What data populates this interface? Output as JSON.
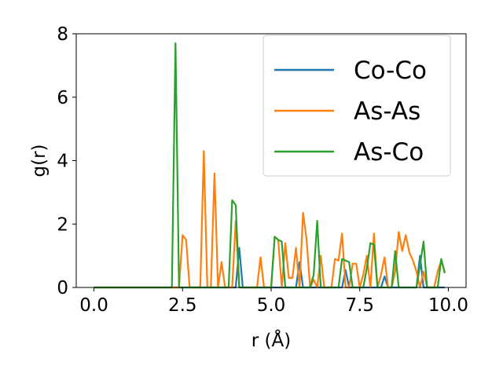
{
  "chart_data": {
    "type": "line",
    "xlabel": "r (Å)",
    "ylabel": "g(r)",
    "xlim": [
      -0.5,
      10.5
    ],
    "ylim": [
      0,
      8
    ],
    "xticks": [
      0.0,
      2.5,
      5.0,
      7.5,
      10.0
    ],
    "xtick_labels": [
      "0.0",
      "2.5",
      "5.0",
      "7.5",
      "10.0"
    ],
    "yticks": [
      0,
      2,
      4,
      6,
      8
    ],
    "ytick_labels": [
      "0",
      "2",
      "4",
      "6",
      "8"
    ],
    "grid": false,
    "legend_position": "top-right",
    "series": [
      {
        "name": "Co-Co",
        "color": "#1f77b4",
        "x": [
          0.0,
          4.0,
          4.1,
          4.2,
          5.7,
          5.8,
          5.9,
          7.0,
          7.1,
          7.2,
          8.1,
          8.2,
          8.3,
          9.1,
          9.2,
          9.3,
          9.9
        ],
        "y": [
          0,
          0,
          1.25,
          0,
          0,
          0.8,
          0,
          0,
          0.55,
          0,
          0,
          0.35,
          0,
          0,
          1.0,
          0,
          0
        ]
      },
      {
        "name": "As-As",
        "color": "#ff7f0e",
        "x": [
          0.0,
          2.4,
          2.5,
          2.6,
          2.7,
          3.0,
          3.1,
          3.2,
          3.3,
          3.4,
          3.5,
          3.6,
          3.7,
          3.8,
          3.9,
          4.0,
          4.1,
          4.2,
          4.6,
          4.7,
          4.8,
          5.0,
          5.1,
          5.2,
          5.3,
          5.4,
          5.5,
          5.6,
          5.7,
          5.8,
          5.9,
          6.0,
          6.1,
          6.2,
          6.3,
          6.4,
          6.5,
          6.6,
          6.7,
          6.8,
          6.9,
          7.0,
          7.1,
          7.2,
          7.3,
          7.4,
          7.5,
          7.6,
          7.7,
          7.8,
          7.9,
          8.0,
          8.1,
          8.2,
          8.3,
          8.4,
          8.5,
          8.6,
          8.7,
          8.8,
          8.9,
          9.0,
          9.1,
          9.2,
          9.3,
          9.4,
          9.5,
          9.6,
          9.7,
          9.8,
          9.9
        ],
        "y": [
          0,
          0,
          1.65,
          1.5,
          0,
          0,
          4.3,
          0,
          0,
          3.6,
          0,
          0.8,
          0,
          0,
          0,
          2.1,
          0,
          0,
          0,
          0.95,
          0,
          0,
          1.6,
          1.5,
          0,
          1.4,
          0.3,
          0.3,
          1.25,
          0,
          2.35,
          1.5,
          0,
          0.25,
          0,
          1.0,
          0,
          0,
          0,
          0.9,
          0.85,
          1.7,
          0,
          0,
          0.75,
          0.75,
          0,
          0.4,
          1.0,
          0,
          1.7,
          0,
          0.4,
          0.95,
          0,
          0,
          0.5,
          1.75,
          1.15,
          1.65,
          1.1,
          0.85,
          0.5,
          0,
          0.5,
          0,
          0,
          0,
          0.5,
          0.85,
          0.5
        ]
      },
      {
        "name": "As-Co",
        "color": "#2ca02c",
        "x": [
          0.0,
          2.2,
          2.3,
          2.4,
          3.8,
          3.9,
          4.0,
          4.1,
          4.9,
          5.0,
          5.1,
          5.2,
          5.3,
          5.4,
          6.1,
          6.2,
          6.3,
          6.4,
          6.9,
          7.0,
          7.1,
          7.2,
          7.3,
          7.6,
          7.7,
          7.8,
          7.9,
          8.0,
          8.4,
          8.5,
          8.6,
          9.1,
          9.2,
          9.3,
          9.4,
          9.7,
          9.8,
          9.9
        ],
        "y": [
          0,
          0,
          7.7,
          0,
          0,
          2.75,
          2.6,
          0,
          0,
          0,
          1.6,
          1.5,
          1.45,
          0,
          0,
          0.4,
          2.1,
          0,
          0,
          0.9,
          0.85,
          0.8,
          0,
          0,
          0.6,
          1.4,
          1.35,
          0,
          0,
          1.15,
          0,
          0,
          0.7,
          1.45,
          0,
          0,
          0.9,
          0.45
        ]
      }
    ]
  }
}
